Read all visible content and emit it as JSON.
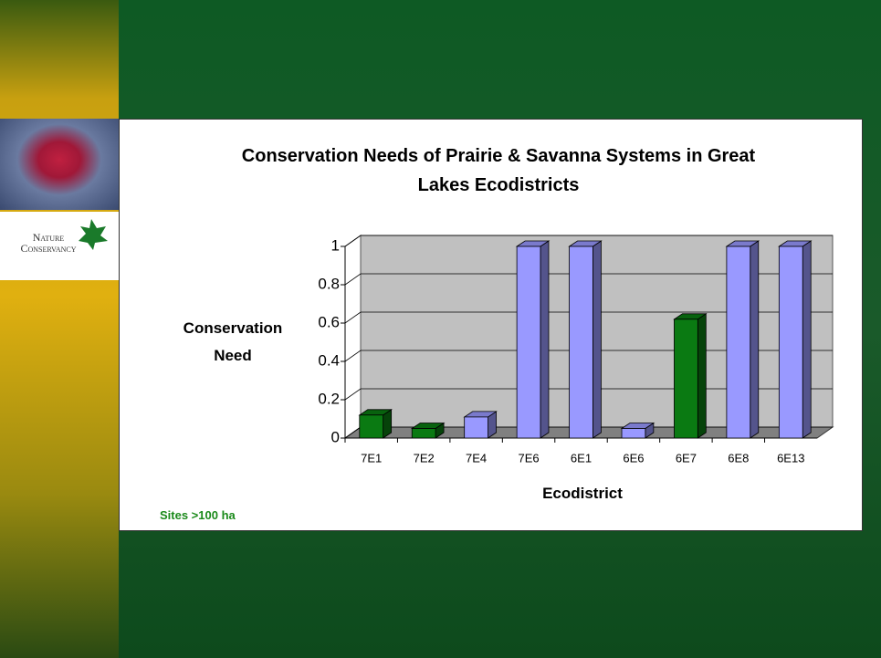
{
  "logo_text": "Nature Conservancy",
  "chart_data": {
    "type": "bar3d",
    "title": "Conservation Needs of Prairie & Savanna Systems in Great Lakes Ecodistricts",
    "y_label": "Conservation Need",
    "x_label": "Ecodistrict",
    "annotation": "Sites >100 ha",
    "categories": [
      "7E1",
      "7E2",
      "7E4",
      "7E6",
      "6E1",
      "6E6",
      "6E7",
      "6E8",
      "6E13"
    ],
    "values": [
      0.12,
      0.05,
      0.11,
      1,
      1,
      0.05,
      0.62,
      1,
      1
    ],
    "colors": [
      "#0a7a12",
      "#0a7a12",
      "#9999ff",
      "#9999ff",
      "#9999ff",
      "#9999ff",
      "#0a7a12",
      "#9999ff",
      "#9999ff"
    ],
    "ylim": [
      0,
      1
    ],
    "yticks": [
      0,
      0.2,
      0.4,
      0.6,
      0.8,
      1
    ],
    "grid": true
  }
}
